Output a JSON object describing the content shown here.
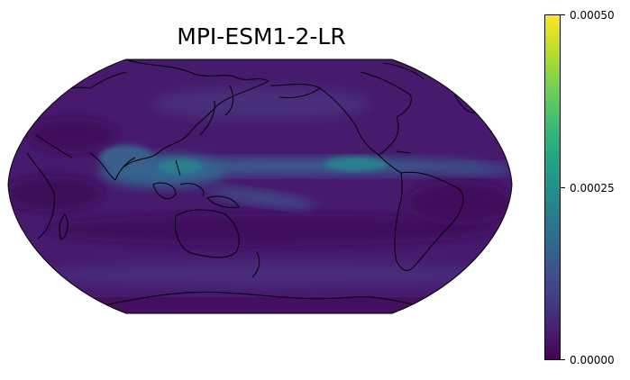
{
  "title": "MPI-ESM1-2-LR",
  "colorbar": {
    "colormap": "viridis",
    "ticks": [
      "0.00050",
      "0.00025",
      "0.00000"
    ],
    "range": [
      0.0,
      0.0005
    ]
  },
  "map": {
    "projection": "Robinson",
    "central_longitude": 180,
    "background_color": "#4a1a6b",
    "coastline_color": "#000000"
  }
}
